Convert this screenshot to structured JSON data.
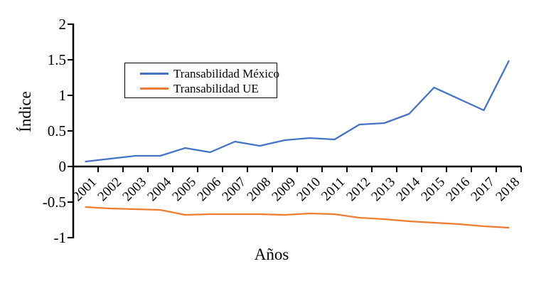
{
  "chart_data": {
    "type": "line",
    "title": "",
    "xlabel": "Años",
    "ylabel": "Índice",
    "categories": [
      "2001",
      "2002",
      "2003",
      "2004",
      "2005",
      "2006",
      "2007",
      "2008",
      "2009",
      "2010",
      "2011",
      "2012",
      "2013",
      "2014",
      "2015",
      "2016",
      "2017",
      "2018"
    ],
    "series": [
      {
        "name": "Transabilidad México",
        "color": "#4472C4",
        "values": [
          0.07,
          0.11,
          0.15,
          0.15,
          0.26,
          0.2,
          0.35,
          0.29,
          0.37,
          0.4,
          0.38,
          0.59,
          0.61,
          0.74,
          1.11,
          0.95,
          0.79,
          1.48
        ]
      },
      {
        "name": "Transabilidad UE",
        "color": "#ED7D31",
        "values": [
          -0.57,
          -0.59,
          -0.6,
          -0.61,
          -0.68,
          -0.67,
          -0.67,
          -0.67,
          -0.68,
          -0.66,
          -0.67,
          -0.72,
          -0.74,
          -0.77,
          -0.79,
          -0.81,
          -0.84,
          -0.86
        ]
      }
    ],
    "ylim": [
      -1,
      2
    ],
    "yticks": [
      2,
      1.5,
      1,
      0.5,
      0,
      -0.5,
      -1
    ],
    "grid": false,
    "legend_position": "inside-upper-left",
    "axis_color": "#000000"
  }
}
